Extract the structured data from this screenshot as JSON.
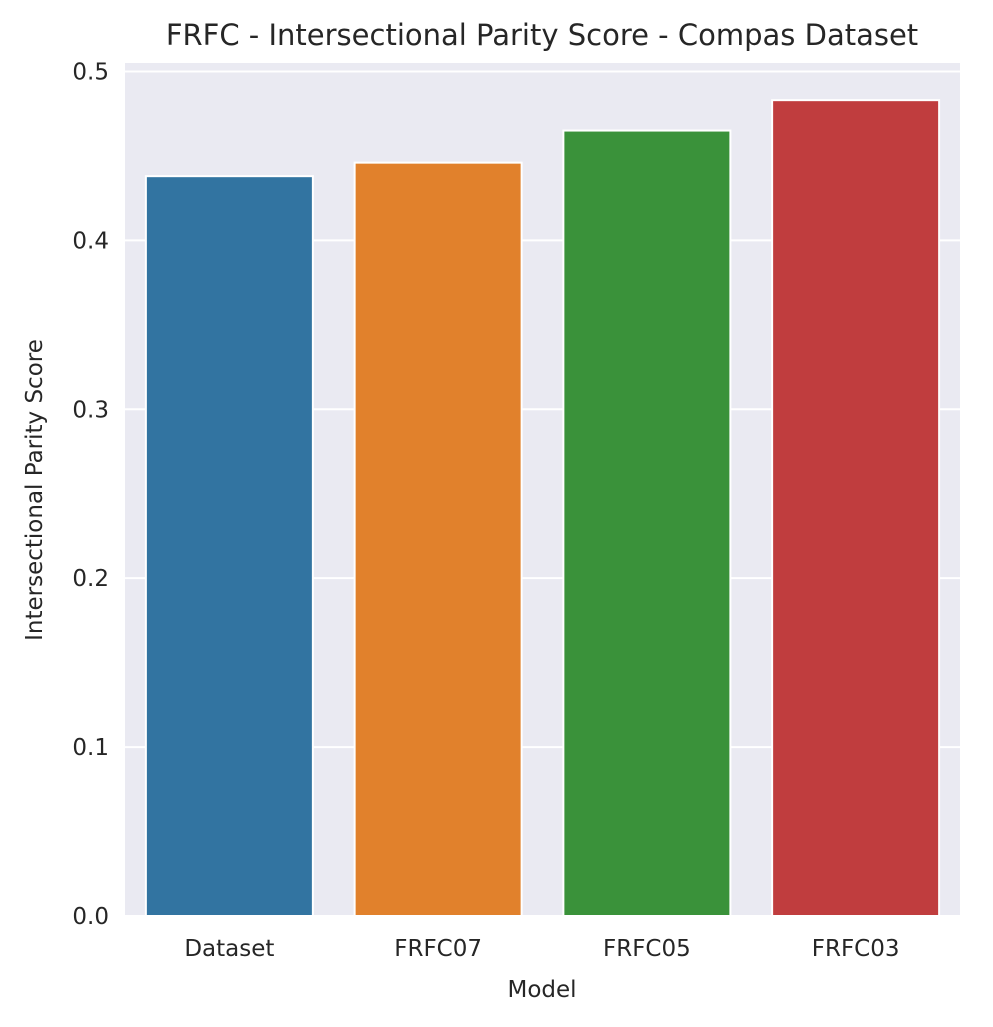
{
  "chart_data": {
    "type": "bar",
    "title": "FRFC - Intersectional Parity Score - Compas Dataset",
    "xlabel": "Model",
    "ylabel": "Intersectional Parity Score",
    "categories": [
      "Dataset",
      "FRFC07",
      "FRFC05",
      "FRFC03"
    ],
    "values": [
      0.438,
      0.446,
      0.465,
      0.483
    ],
    "colors": [
      "#3274a1",
      "#e1812c",
      "#3a923a",
      "#c03d3e"
    ],
    "ylim": [
      0,
      0.505
    ],
    "yticks": [
      0.0,
      0.1,
      0.2,
      0.3,
      0.4,
      0.5
    ],
    "ytick_labels": [
      "0.0",
      "0.1",
      "0.2",
      "0.3",
      "0.4",
      "0.5"
    ],
    "grid": true,
    "background": "#eaeaf2",
    "grid_color": "#ffffff"
  }
}
